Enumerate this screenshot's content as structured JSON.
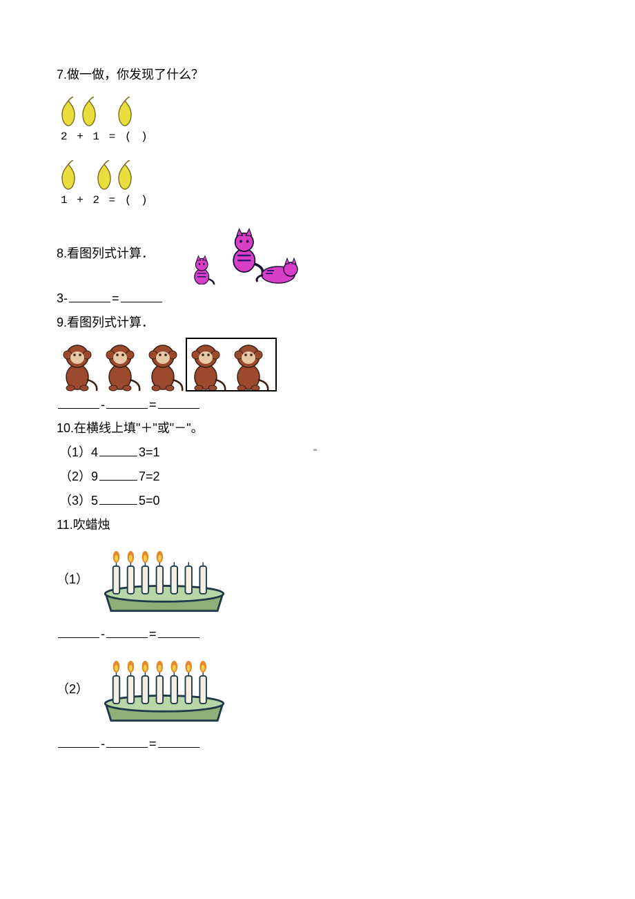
{
  "page": {
    "background_color": "#ffffff",
    "text_color": "#000000",
    "body_fontsize": 18
  },
  "q7": {
    "number": "7.",
    "text": "做一做，你发现了什么？",
    "eq1": "2 + 1 = (   )",
    "eq2": "1 + 2 = (   )",
    "pear_fill": "#e9de3d",
    "pear_stroke": "#7a6a1e",
    "row1_groups": [
      2,
      1
    ],
    "row2_groups": [
      1,
      2
    ]
  },
  "q8": {
    "number": "8.",
    "text": "看图列式计算．",
    "prefix": "3-",
    "eq_mid": "=",
    "cat": {
      "body_color": "#d93ec7",
      "stripe_color": "#2b1a6e",
      "outline": "#151030"
    }
  },
  "q9": {
    "number": "9.",
    "text": "看图列式计算．",
    "dash": "-",
    "eq": "=",
    "monkey": {
      "body": "#9c4a2e",
      "face": "#e7c9a8",
      "outline": "#3a1e10",
      "box_stroke": "#000000",
      "total": 5,
      "boxed_from_index": 3
    }
  },
  "q10": {
    "number": "10.",
    "text": "在横线上填\"＋\"或\"－\"。",
    "items": [
      {
        "label": "（1）",
        "a": "4",
        "b": "3=1"
      },
      {
        "label": "（2）",
        "a": "9",
        "b": "7=2"
      },
      {
        "label": "（3）",
        "a": "5",
        "b": "5=0"
      }
    ]
  },
  "q11": {
    "number": "11.",
    "text": "吹蜡烛",
    "dash": "-",
    "eq": "=",
    "items": [
      {
        "label": "（1）",
        "candles": 7,
        "lit": 4
      },
      {
        "label": "（2）",
        "candles": 7,
        "lit": 7
      }
    ],
    "style": {
      "cake_top": "#b9d7a6",
      "cake_side": "#8fae78",
      "cake_outline": "#1e3a4a",
      "candle_body": "#f4efe2",
      "candle_outline": "#1e3a4a",
      "flame_outer": "#e28a2d",
      "flame_inner": "#f6d04a"
    }
  }
}
